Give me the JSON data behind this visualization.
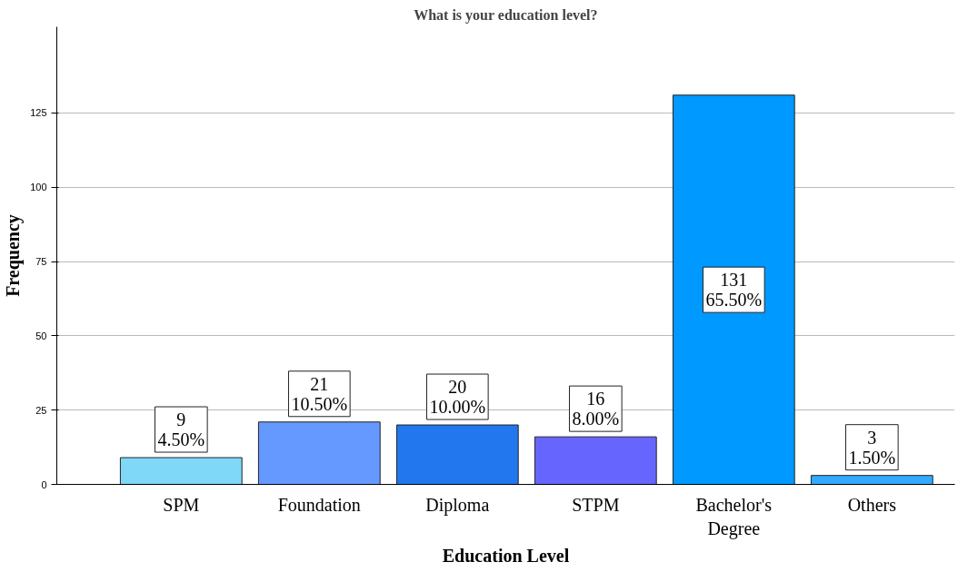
{
  "chart_data": {
    "type": "bar",
    "title": "What is your education level?",
    "xlabel": "Education Level",
    "ylabel": "Frequency",
    "categories": [
      "SPM",
      "Foundation",
      "Diploma",
      "STPM",
      "Bachelor's Degree",
      "Others"
    ],
    "values": [
      9,
      21,
      20,
      16,
      131,
      3
    ],
    "colors": [
      "#7fd8f8",
      "#6699ff",
      "#2277ee",
      "#6666ff",
      "#0099ff",
      "#33aaff"
    ],
    "value_labels": [
      "9\n4.50%",
      "21\n10.50%",
      "20\n10.00%",
      "16\n8.00%",
      "131\n65.50%",
      "3\n1.50%"
    ],
    "ylim": [
      0,
      154
    ],
    "yticks": [
      0,
      25,
      50,
      75,
      100,
      125
    ],
    "grid": "y"
  }
}
